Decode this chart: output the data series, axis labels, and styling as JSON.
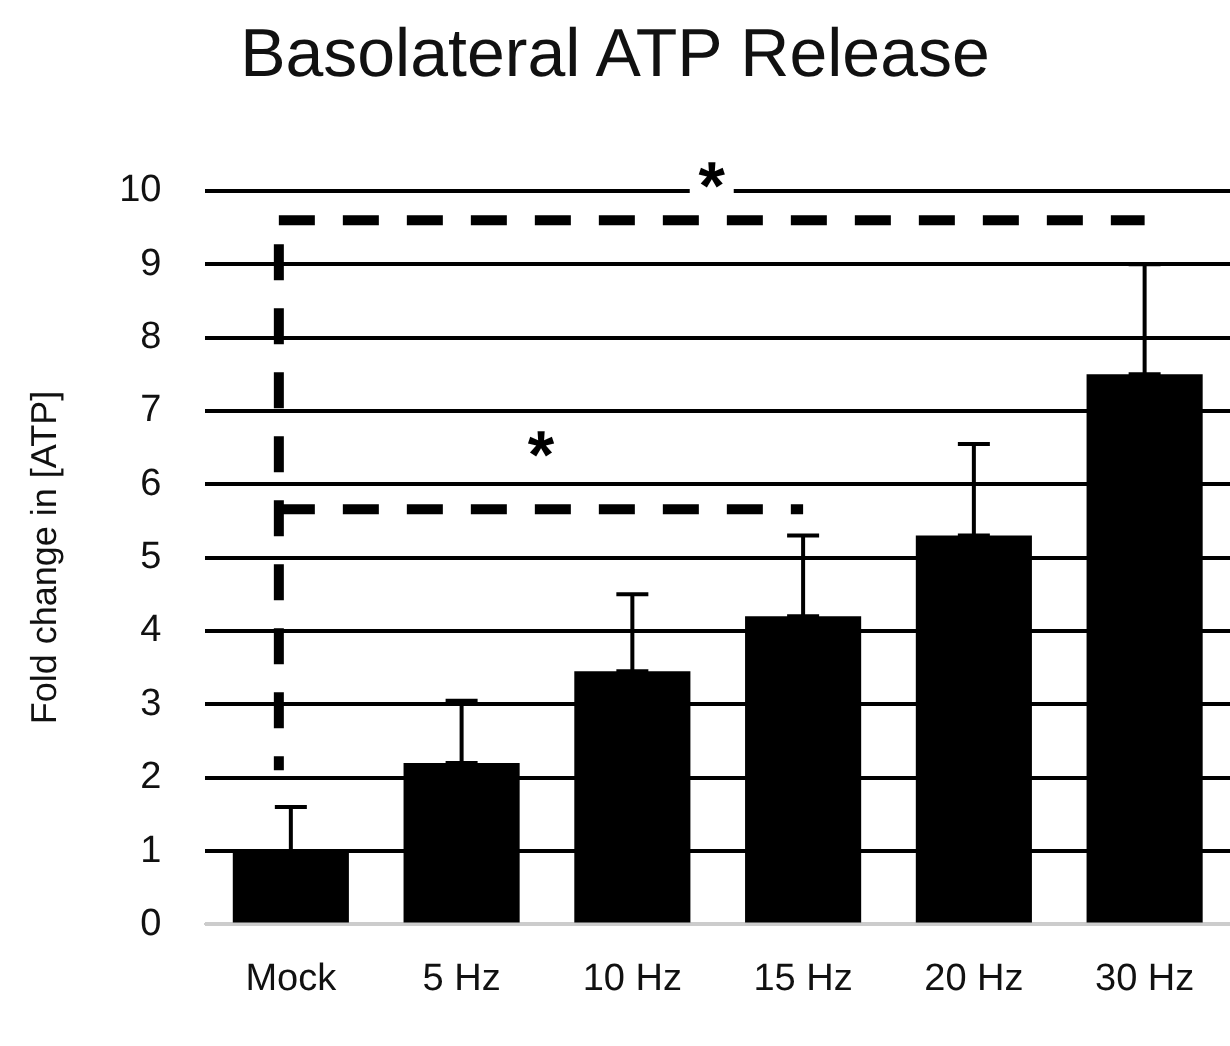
{
  "chart_data": {
    "type": "bar",
    "title": "Basolateral ATP Release",
    "ylabel": "Fold change in [ATP]",
    "categories": [
      "Mock",
      "5 Hz",
      "10 Hz",
      "15 Hz",
      "20 Hz",
      "30 Hz"
    ],
    "values": [
      1.0,
      2.2,
      3.45,
      4.2,
      5.3,
      7.5
    ],
    "errors": [
      [
        1.0,
        1.6
      ],
      [
        2.2,
        3.05
      ],
      [
        3.45,
        4.5
      ],
      [
        4.2,
        5.3
      ],
      [
        5.3,
        6.55
      ],
      [
        7.5,
        9.0
      ]
    ],
    "color": "#000000",
    "ylim": [
      0,
      10
    ],
    "yticks": [
      0,
      1,
      2,
      3,
      4,
      5,
      6,
      7,
      8,
      9,
      10
    ],
    "grid": "y",
    "legend": false,
    "annotations": [
      "*"
    ],
    "ref_lines": [
      {
        "axis": "y",
        "value": 9.6,
        "label": "*",
        "color": "#000000",
        "line_style": "dashed"
      }
    ]
  }
}
